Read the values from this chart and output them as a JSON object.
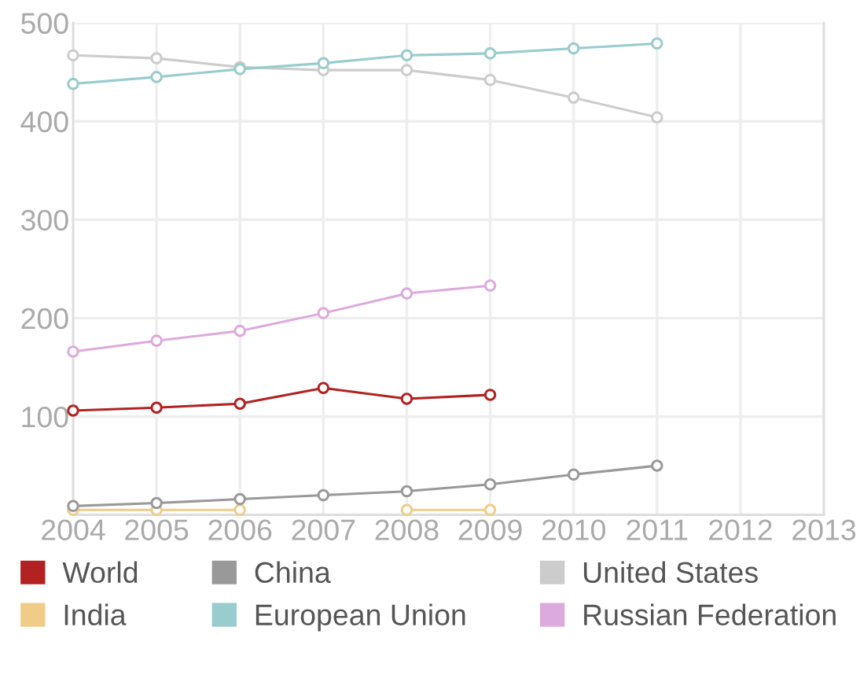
{
  "chart_data": {
    "type": "line",
    "x": [
      2004,
      2005,
      2006,
      2007,
      2008,
      2009,
      2010,
      2011
    ],
    "series": [
      {
        "name": "World",
        "color": "#b22222",
        "values": [
          106,
          109,
          113,
          129,
          118,
          122,
          null,
          null
        ]
      },
      {
        "name": "China",
        "color": "#999999",
        "values": [
          9,
          12,
          16,
          20,
          24,
          31,
          41,
          50
        ]
      },
      {
        "name": "United States",
        "color": "#cccccc",
        "values": [
          467,
          464,
          455,
          452,
          452,
          442,
          424,
          404
        ]
      },
      {
        "name": "India",
        "color": "#f0cc88",
        "values": [
          5,
          5,
          5,
          null,
          5,
          5,
          null,
          null
        ]
      },
      {
        "name": "European Union",
        "color": "#99cccc",
        "values": [
          438,
          445,
          453,
          459,
          467,
          469,
          474,
          479
        ]
      },
      {
        "name": "Russian Federation",
        "color": "#ddaadd",
        "values": [
          166,
          177,
          187,
          205,
          225,
          233,
          null,
          null
        ]
      }
    ],
    "xlim": [
      2004,
      2013
    ],
    "xticks": [
      2004,
      2005,
      2006,
      2007,
      2008,
      2009,
      2010,
      2011,
      2012,
      2013
    ],
    "ylim": [
      0,
      500
    ],
    "yticks": [
      {
        "value": 0,
        "label": null
      },
      100,
      200,
      300,
      400,
      500
    ],
    "grid": true,
    "legend": "bottom",
    "marker": "circle",
    "line_style": "solid"
  }
}
